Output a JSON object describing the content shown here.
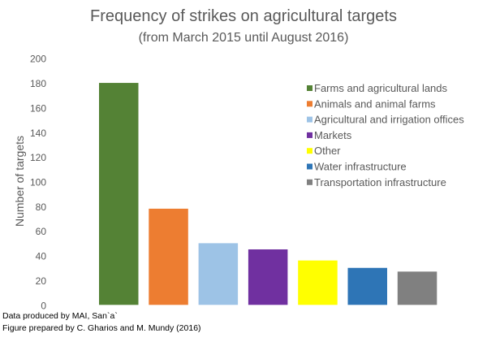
{
  "chart_data": {
    "type": "bar",
    "title": "Frequency of strikes on agricultural targets",
    "subtitle": "(from March 2015 until August 2016)",
    "xlabel": "",
    "ylabel": "Number of targets",
    "ylim": [
      0,
      200
    ],
    "yticks": [
      "0",
      "20",
      "40",
      "60",
      "80",
      "100",
      "120",
      "140",
      "160",
      "180",
      "200"
    ],
    "grid": false,
    "legend_placement": "right",
    "categories": [
      "Farms and agricultural lands",
      "Animals and animal farms",
      "Agricultural and irrigation offices",
      "Markets",
      "Other",
      "Water infrastructure",
      "Transportation infrastructure"
    ],
    "values": [
      180,
      78,
      50,
      45,
      36,
      30,
      27
    ],
    "colors": [
      "#548235",
      "#ED7D31",
      "#9DC3E6",
      "#7030A0",
      "#FFFF00",
      "#2E75B6",
      "#808080"
    ]
  },
  "notes": {
    "line1": "Data produced by MAI, San`a`",
    "line2": "Figure prepared by C. Gharios and M. Mundy (2016)"
  }
}
